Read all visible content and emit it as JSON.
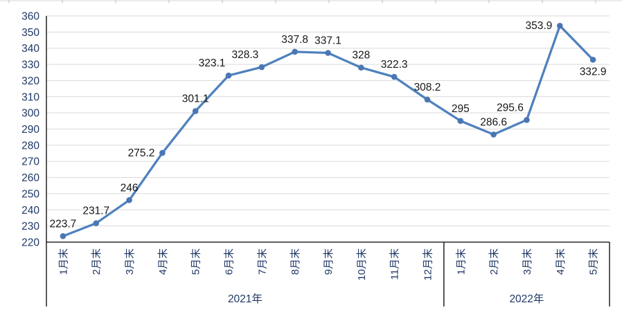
{
  "chart_data": {
    "type": "line",
    "title": "",
    "legend": "none",
    "grid": true,
    "categories": [
      "1月末",
      "2月末",
      "3月末",
      "4月末",
      "5月末",
      "6月末",
      "7月末",
      "8月末",
      "9月末",
      "10月末",
      "11月末",
      "12月末",
      "1月末",
      "2月末",
      "3月末",
      "4月末",
      "5月末"
    ],
    "category_groups": [
      {
        "label": "2021年",
        "span": 12
      },
      {
        "label": "2022年",
        "span": 5
      }
    ],
    "series": [
      {
        "name": "",
        "values": [
          223.7,
          231.7,
          246,
          275.2,
          301.1,
          323.1,
          328.3,
          337.8,
          337.1,
          328,
          322.3,
          308.2,
          295,
          286.6,
          295.6,
          353.9,
          332.9
        ],
        "data_labels": [
          "223.7",
          "231.7",
          "246",
          "275.2",
          "301.1",
          "323.1",
          "328.3",
          "337.8",
          "337.1",
          "328",
          "322.3",
          "308.2",
          "295",
          "286.6",
          "295.6",
          "353.9",
          "332.9"
        ],
        "label_positions": [
          "above",
          "above",
          "above",
          "left",
          "above",
          "above-left",
          "above-left",
          "above",
          "above",
          "above",
          "above",
          "above",
          "above",
          "above",
          "above-left",
          "left",
          "below"
        ]
      }
    ],
    "xlabel": "",
    "ylabel": "",
    "ylim": [
      220,
      360
    ],
    "ytick_step": 10,
    "ytick_labels": [
      "220",
      "230",
      "240",
      "250",
      "260",
      "270",
      "280",
      "290",
      "300",
      "310",
      "320",
      "330",
      "340",
      "350",
      "360"
    ],
    "colors": {
      "line": "#4f81bd",
      "marker": "#4a77b4",
      "gridline": "#d9d9d9",
      "axis_line": "#000000",
      "axis_text": "#1f3864",
      "data_label_text": "#161616",
      "sheet_edge": "#d9d9d9",
      "sheet_tick": "#bfbfbf"
    }
  }
}
